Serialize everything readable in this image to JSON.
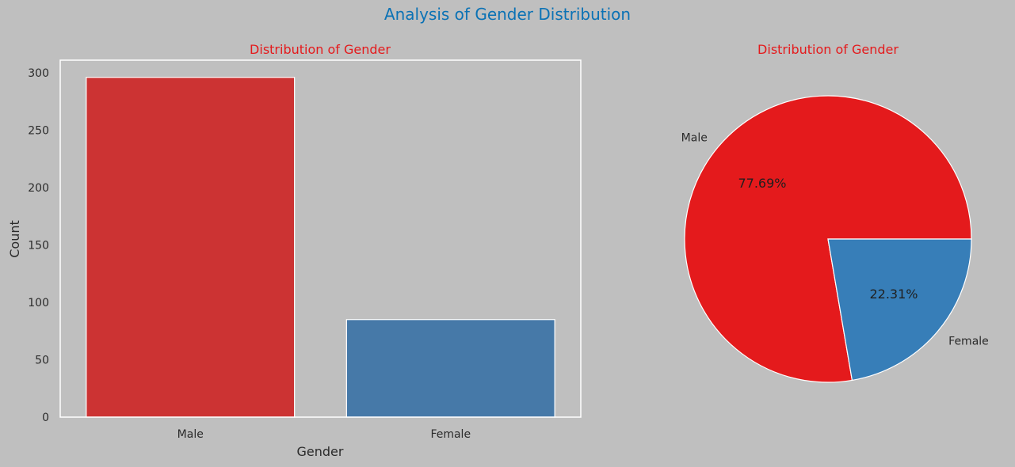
{
  "suptitle": "Analysis of Gender Distribution",
  "chart_data": [
    {
      "type": "bar",
      "title": "Distribution of Gender",
      "xlabel": "Gender",
      "ylabel": "Count",
      "categories": [
        "Male",
        "Female"
      ],
      "values": [
        296,
        85
      ],
      "ylim": [
        0,
        311
      ],
      "yticks": [
        0,
        50,
        100,
        150,
        200,
        250,
        300
      ],
      "colors": [
        "#cc3333",
        "#4679a8"
      ],
      "title_color": "#e41a1c",
      "grid": false
    },
    {
      "type": "pie",
      "title": "Distribution of Gender",
      "labels": [
        "Male",
        "Female"
      ],
      "values": [
        77.69,
        22.31
      ],
      "percent_labels": [
        "77.69%",
        "22.31%"
      ],
      "colors": [
        "#e41a1c",
        "#377eb8"
      ],
      "title_color": "#e41a1c"
    }
  ]
}
